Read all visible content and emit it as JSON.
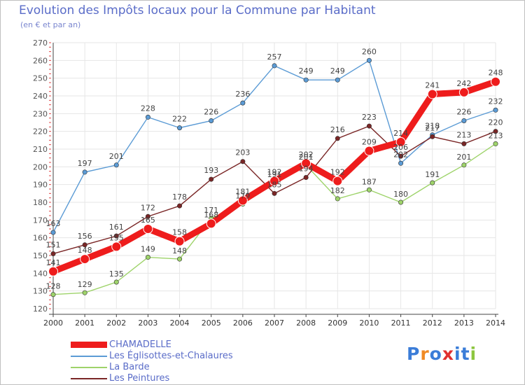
{
  "title": "Evolution des Impôts locaux pour la Commune par Habitant",
  "subtitle": "(en € et par an)",
  "logo": {
    "text": "Proxiti",
    "letters": [
      "P",
      "r",
      "o",
      "x",
      "i",
      "t",
      "i"
    ],
    "colors": [
      "#3b7dd8",
      "#f08a24",
      "#3b7dd8",
      "#e03030",
      "#3b7dd8",
      "#3b7dd8",
      "#8dc63f"
    ]
  },
  "chart_data": {
    "type": "line",
    "x": [
      "2000",
      "2001",
      "2002",
      "2003",
      "2004",
      "2005",
      "2006",
      "2007",
      "2008",
      "2009",
      "2010",
      "2011",
      "2012",
      "2013",
      "2014"
    ],
    "ylim": [
      120,
      270
    ],
    "yticks": [
      "120",
      "130",
      "140",
      "150",
      "160",
      "170",
      "180",
      "190",
      "200",
      "210",
      "220",
      "230",
      "240",
      "250",
      "260",
      "270"
    ],
    "grid": true,
    "legend_position": "bottom-left",
    "series": [
      {
        "name": "Les Églisottes-et-Chalaures",
        "color": "#5b9bd5",
        "values": [
          163,
          197,
          201,
          228,
          222,
          226,
          236,
          257,
          249,
          249,
          260,
          202,
          218,
          226,
          232
        ],
        "labels": [
          "163",
          "197",
          "201",
          "228",
          "222",
          "226",
          "236",
          "257",
          "249",
          "249",
          "260",
          "202",
          "218",
          "226",
          "232"
        ]
      },
      {
        "name": "La Barde",
        "color": "#9ed36a",
        "values": [
          128,
          129,
          135,
          149,
          148,
          171,
          179,
          191,
          201,
          182,
          187,
          180,
          191,
          201,
          213
        ],
        "labels": [
          "128",
          "129",
          "135",
          "149",
          "148",
          "171",
          "179",
          "191",
          "201",
          "182",
          "187",
          "180",
          "191",
          "201",
          "213"
        ]
      },
      {
        "name": "Les Peintures",
        "color": "#7a2626",
        "values": [
          151,
          156,
          161,
          172,
          178,
          193,
          203,
          185,
          194,
          216,
          223,
          206,
          217,
          213,
          220
        ],
        "labels": [
          "151",
          "156",
          "161",
          "172",
          "178",
          "193",
          "203",
          "185",
          "194",
          "216",
          "223",
          "206",
          "217",
          "213",
          "220"
        ]
      },
      {
        "name": "CHAMADELLE",
        "color": "#ee1c1c",
        "values": [
          141,
          148,
          155,
          165,
          158,
          168,
          181,
          192,
          202,
          192,
          209,
          214,
          241,
          242,
          248
        ],
        "labels": [
          "141",
          "148",
          "155",
          "165",
          "158",
          "168",
          "181",
          "192",
          "202",
          "192",
          "209",
          "214",
          "241",
          "242",
          "248"
        ]
      }
    ],
    "legend_order": [
      "CHAMADELLE",
      "Les Églisottes-et-Chalaures",
      "La Barde",
      "Les Peintures"
    ]
  }
}
